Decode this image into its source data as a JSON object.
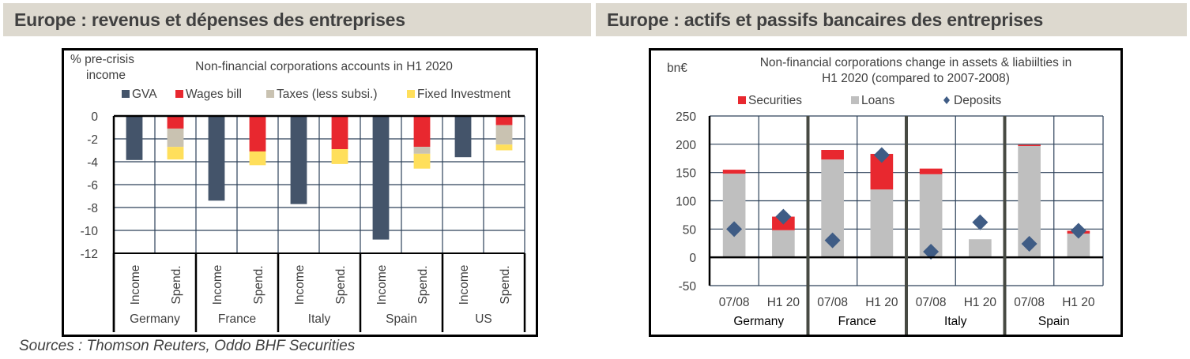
{
  "headers": {
    "left": "Europe : revenus et dépenses des entreprises",
    "right": "Europe : actifs et passifs bancaires des entreprises"
  },
  "source": "Sources : Thomson Reuters, Oddo BHF Securities",
  "colors": {
    "gva": "#44546a",
    "wages": "#e8282f",
    "taxes": "#c9c2b1",
    "fixed_investment": "#ffdf5b",
    "securities": "#e8282f",
    "loans": "#bfbfbf",
    "deposits": "#3f5c85",
    "grid": "#2d4159",
    "header_bg": "#ddd9cf"
  },
  "chart_data": [
    {
      "type": "bar",
      "stacked": true,
      "title": "Non-financial corporations accounts in H1 2020",
      "ylabel": "% pre-crisis income",
      "ylabel_lines": [
        "%  pre-crisis",
        "income"
      ],
      "xlabel": "",
      "ylim": [
        -12,
        0
      ],
      "yticks": [
        0,
        -2,
        -4,
        -6,
        -8,
        -10,
        -12
      ],
      "grid": true,
      "legend_position": "top",
      "legend": [
        "GVA",
        "Wages bill",
        "Taxes (less subsi.)",
        "Fixed Investment"
      ],
      "groups": [
        "Germany",
        "France",
        "Italy",
        "Spain",
        "US"
      ],
      "subcategories": [
        "Income",
        "Spend."
      ],
      "series": [
        {
          "name": "GVA",
          "bar": "Income",
          "values": [
            -3.85,
            -7.4,
            -7.7,
            -10.8,
            -3.6
          ]
        },
        {
          "name": "Wages bill",
          "bar": "Spend.",
          "values": [
            -1.1,
            -3.1,
            -2.9,
            -2.7,
            -0.8
          ]
        },
        {
          "name": "Taxes (less subsi.)",
          "bar": "Spend.",
          "values": [
            -1.6,
            0,
            0,
            -0.6,
            -1.7
          ]
        },
        {
          "name": "Fixed Investment",
          "bar": "Spend.",
          "values": [
            -1.1,
            -1.2,
            -1.3,
            -1.3,
            -0.5
          ]
        }
      ]
    },
    {
      "type": "bar",
      "stacked": true,
      "title": "Non-financial corporations change in assets & liabiilties in H1 2020 (compared to 2007-2008)",
      "title_lines": [
        "Non-financial corporations change in assets & liabiilties in",
        "H1 2020 (compared to 2007-2008)"
      ],
      "ylabel": "bn€",
      "xlabel": "",
      "ylim": [
        -50,
        250
      ],
      "yticks": [
        250,
        200,
        150,
        100,
        50,
        0,
        -50
      ],
      "grid": true,
      "legend_position": "top",
      "legend": [
        "Securities",
        "Loans",
        "Deposits"
      ],
      "groups": [
        "Germany",
        "France",
        "Italy",
        "Spain"
      ],
      "subcategories": [
        "07/08",
        "H1 20"
      ],
      "series": [
        {
          "name": "Loans",
          "kind": "bar",
          "values": [
            148,
            48,
            173,
            120,
            147,
            32,
            197,
            42
          ]
        },
        {
          "name": "Securities",
          "kind": "bar",
          "values": [
            7,
            24,
            17,
            63,
            10,
            0,
            2,
            5
          ]
        },
        {
          "name": "Deposits",
          "kind": "marker",
          "values": [
            50,
            72,
            30,
            181,
            10,
            62,
            24,
            47
          ]
        }
      ]
    }
  ]
}
